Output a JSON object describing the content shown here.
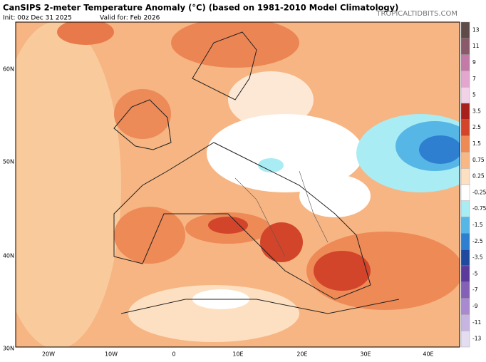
{
  "header": {
    "title": "CanSIPS 2-meter Temperature Anomaly (°C) (based on 1981-2010 Model Climatology)",
    "init": "Init: 00z Dec 31 2025",
    "valid": "Valid for: Feb 2026",
    "site": "TROPICALTIDBITS.COM"
  },
  "map": {
    "lat_labels": [
      "60N",
      "50N",
      "40N",
      "30N"
    ],
    "lon_labels": [
      "20W",
      "10W",
      "0",
      "10E",
      "20E",
      "30E",
      "40E"
    ]
  },
  "colorbar": {
    "labels": [
      "13",
      "11",
      "9",
      "7",
      "5",
      "3.5",
      "2.5",
      "1.5",
      "0.75",
      "0.25",
      "-0.25",
      "-0.75",
      "-1.5",
      "-2.5",
      "-3.5",
      "-5",
      "-7",
      "-9",
      "-11",
      "-13"
    ],
    "colors": [
      "#5e4a48",
      "#8a5a6a",
      "#c47aa6",
      "#e2a6cf",
      "#f2d2e6",
      "#a8201c",
      "#d2452a",
      "#ee8a55",
      "#f8b886",
      "#fde0c2",
      "#ffffff",
      "#a9ecf4",
      "#56b7e6",
      "#2f7fd0",
      "#1f4aa0",
      "#5a3a9a",
      "#8460b6",
      "#a98ad0",
      "#c8b4e0",
      "#e4dcf0"
    ]
  }
}
